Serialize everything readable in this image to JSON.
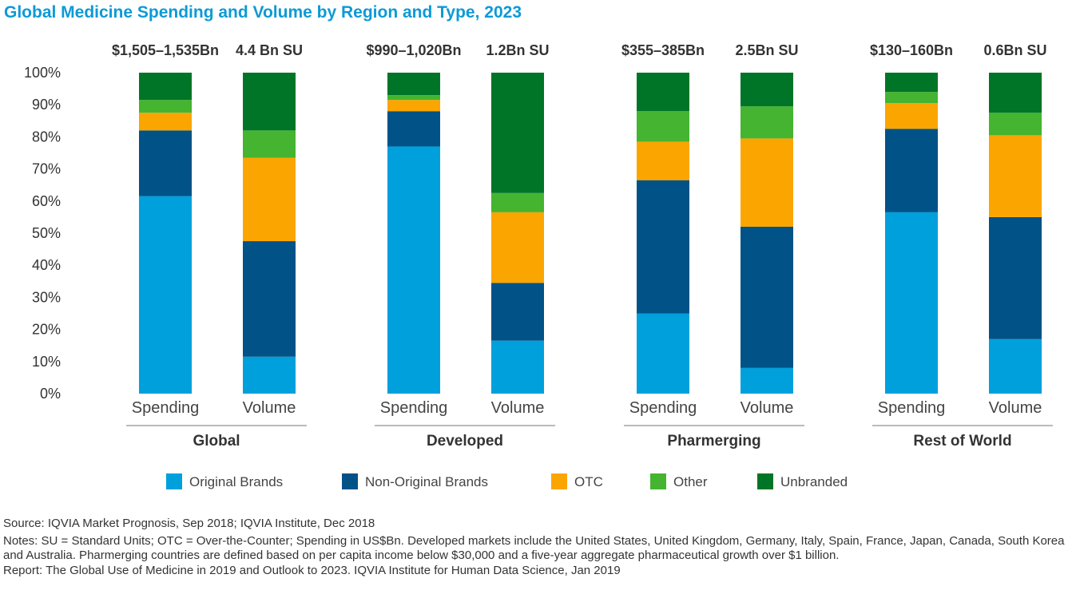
{
  "title": "Global Medicine Spending and Volume by Region and Type, 2023",
  "chart_data": {
    "type": "bar",
    "stacked": true,
    "normalized": true,
    "ylim": [
      0,
      100
    ],
    "yticks": [
      "0%",
      "10%",
      "20%",
      "30%",
      "40%",
      "50%",
      "60%",
      "70%",
      "80%",
      "90%",
      "100%"
    ],
    "series": [
      {
        "name": "Original Brands",
        "color": "#00a0dc"
      },
      {
        "name": "Non-Original Brands",
        "color": "#005287"
      },
      {
        "name": "OTC",
        "color": "#fba500"
      },
      {
        "name": "Other",
        "color": "#45b430"
      },
      {
        "name": "Unbranded",
        "color": "#007527"
      }
    ],
    "groups": [
      {
        "name": "Global",
        "bars": [
          {
            "label": "Spending",
            "total": "$1,505–1,535Bn",
            "values": [
              61.5,
              20.5,
              5.5,
              4,
              8.5
            ]
          },
          {
            "label": "Volume",
            "total": "4.4 Bn SU",
            "values": [
              11.5,
              36,
              26,
              8.5,
              18
            ]
          }
        ]
      },
      {
        "name": "Developed",
        "bars": [
          {
            "label": "Spending",
            "total": "$990–1,020Bn",
            "values": [
              77,
              11,
              3.5,
              1.5,
              7
            ]
          },
          {
            "label": "Volume",
            "total": "1.2Bn SU",
            "values": [
              16.5,
              18,
              22,
              6,
              37.5
            ]
          }
        ]
      },
      {
        "name": "Pharmerging",
        "bars": [
          {
            "label": "Spending",
            "total": "$355–385Bn",
            "values": [
              25,
              41.5,
              12,
              9.5,
              12
            ]
          },
          {
            "label": "Volume",
            "total": "2.5Bn SU",
            "values": [
              8,
              44,
              27.5,
              10,
              10.5
            ]
          }
        ]
      },
      {
        "name": "Rest of World",
        "bars": [
          {
            "label": "Spending",
            "total": "$130–160Bn",
            "values": [
              56.5,
              26,
              8,
              3.5,
              6
            ]
          },
          {
            "label": "Volume",
            "total": "0.6Bn SU",
            "values": [
              17,
              38,
              25.5,
              7,
              12.5
            ]
          }
        ]
      }
    ]
  },
  "source": "Source: IQVIA Market Prognosis, Sep 2018; IQVIA Institute, Dec 2018",
  "notes": "Notes: SU = Standard Units; OTC = Over-the-Counter; Spending in US$Bn. Developed markets include the United States, United Kingdom, Germany, Italy, Spain, France, Japan, Canada, South Korea and Australia. Pharmerging countries are defined based on per capita income below $30,000 and a five-year aggregate pharmaceutical growth over $1 billion.",
  "report": "Report: The Global Use of Medicine in 2019 and Outlook to 2023. IQVIA Institute for Human Data Science, Jan 2019"
}
